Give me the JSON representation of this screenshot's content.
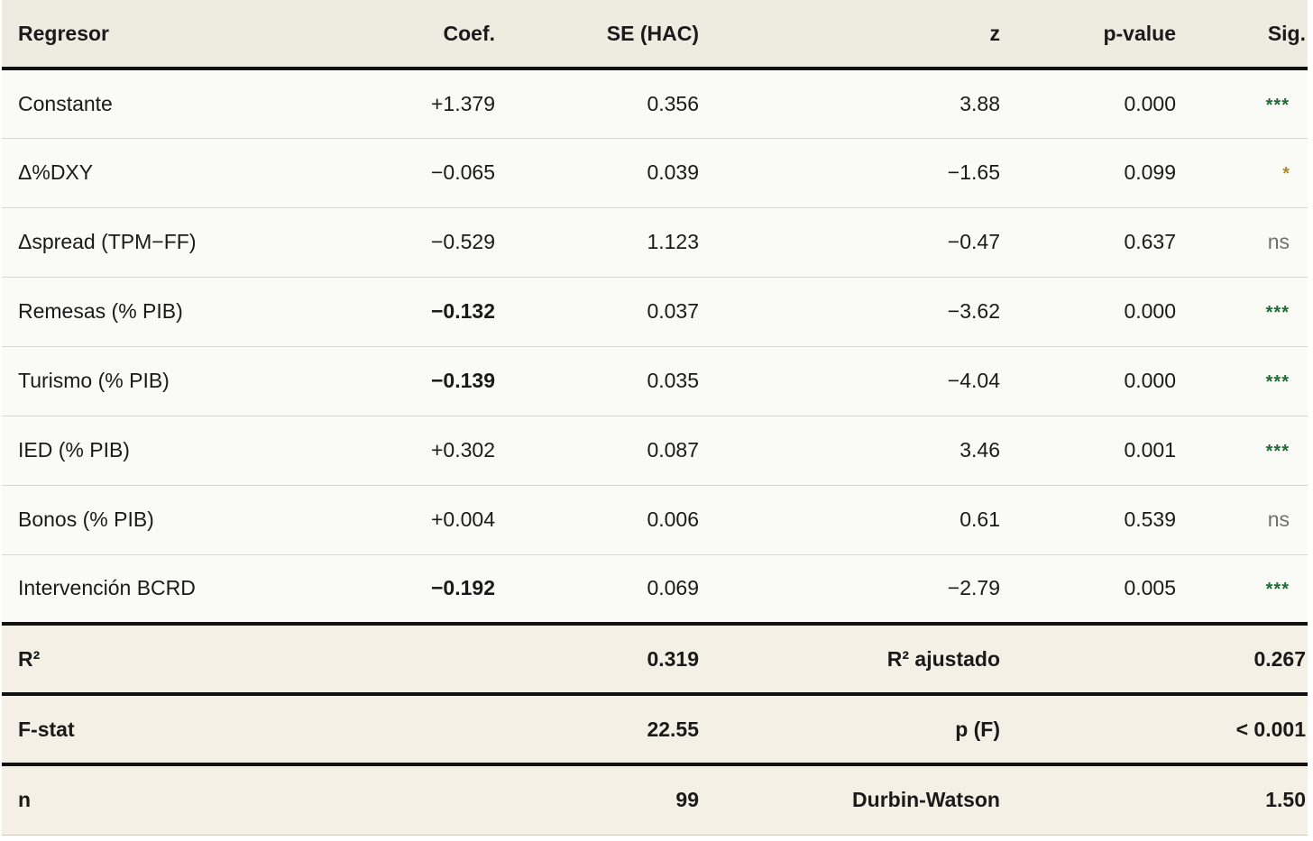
{
  "header": {
    "regresor": "Regresor",
    "coef": "Coef.",
    "se": "SE (HAC)",
    "z": "z",
    "pvalue": "p-value",
    "sig": "Sig."
  },
  "rows": [
    {
      "regresor": "Constante",
      "coef": "+1.379",
      "se": "0.356",
      "z": "3.88",
      "p": "0.000",
      "sig": "***"
    },
    {
      "regresor": "Δ%DXY",
      "coef": "−0.065",
      "se": "0.039",
      "z": "−1.65",
      "p": "0.099",
      "sig": "*"
    },
    {
      "regresor": "Δspread (TPM−FF)",
      "coef": "−0.529",
      "se": "1.123",
      "z": "−0.47",
      "p": "0.637",
      "sig": "ns"
    },
    {
      "regresor": "Remesas (% PIB)",
      "coef": "−0.132",
      "se": "0.037",
      "z": "−3.62",
      "p": "0.000",
      "sig": "***"
    },
    {
      "regresor": "Turismo (% PIB)",
      "coef": "−0.139",
      "se": "0.035",
      "z": "−4.04",
      "p": "0.000",
      "sig": "***"
    },
    {
      "regresor": "IED (% PIB)",
      "coef": "+0.302",
      "se": "0.087",
      "z": "3.46",
      "p": "0.001",
      "sig": "***"
    },
    {
      "regresor": "Bonos (% PIB)",
      "coef": "+0.004",
      "se": "0.006",
      "z": "0.61",
      "p": "0.539",
      "sig": "ns"
    },
    {
      "regresor": "Intervención BCRD",
      "coef": "−0.192",
      "se": "0.069",
      "z": "−2.79",
      "p": "0.005",
      "sig": "***"
    }
  ],
  "stats": [
    {
      "label1": "R²",
      "value1": "0.319",
      "label2": "R² ajustado",
      "value2": "0.267"
    },
    {
      "label1": "F-stat",
      "value1": "22.55",
      "label2": "p (F)",
      "value2": "< 0.001"
    },
    {
      "label1": "n",
      "value1": "99",
      "label2": "Durbin-Watson",
      "value2": "1.50"
    }
  ],
  "colors": {
    "sig_strong": "#1f6b35",
    "sig_weak": "#b08a2e",
    "sig_ns": "#707070",
    "header_bg": "#eeebe1",
    "stats_bg": "#f4f0e6"
  }
}
